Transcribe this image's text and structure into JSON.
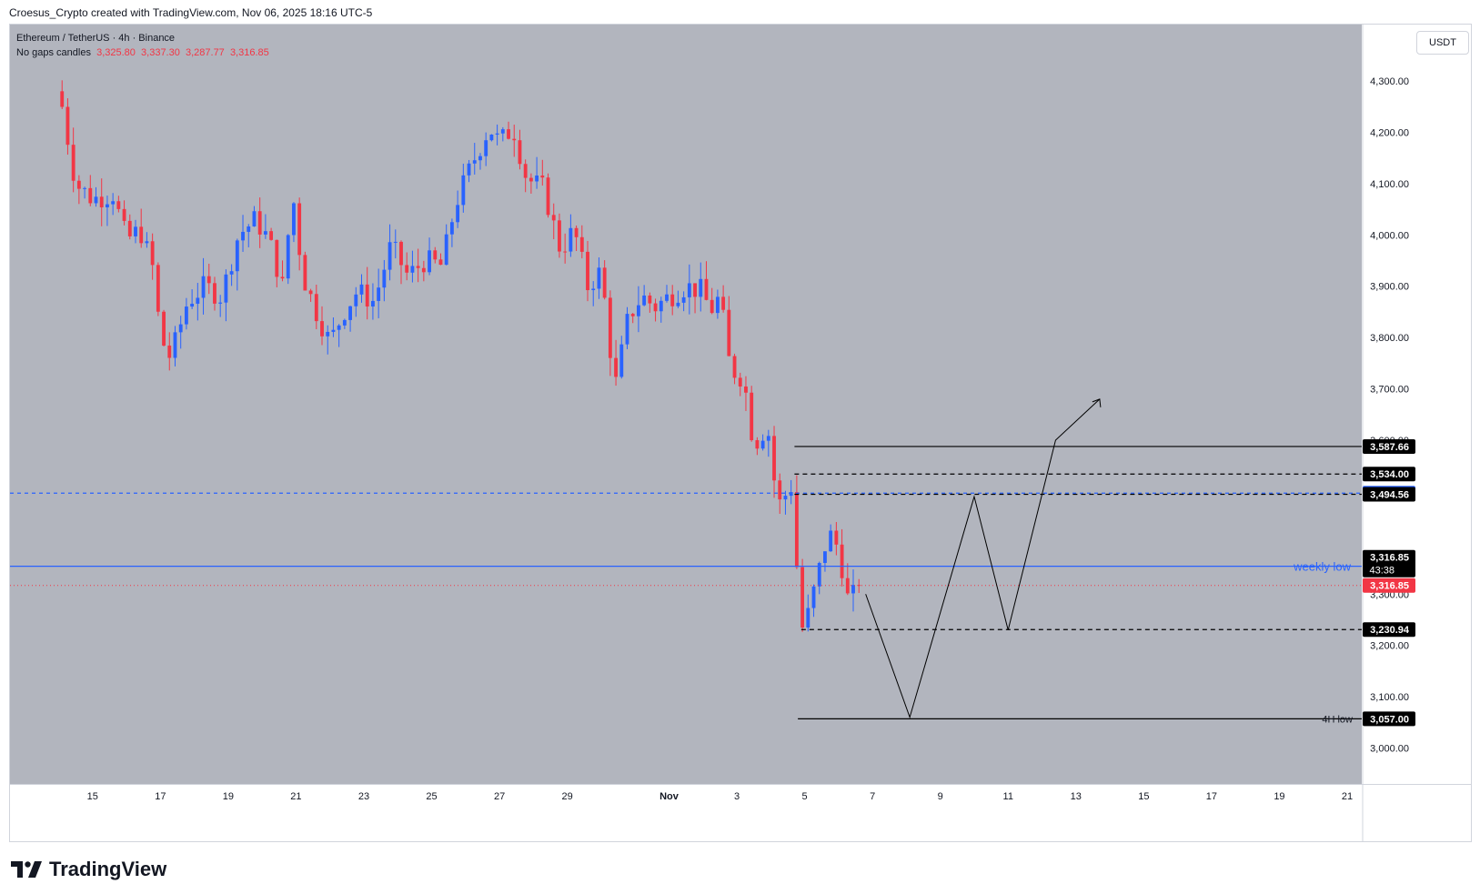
{
  "header": {
    "attribution": "Croesus_Crypto created with TradingView.com, Nov 06, 2025 18:16 UTC-5"
  },
  "legend": {
    "symbol_line": "Ethereum / TetherUS · 4h · Binance",
    "candle_type": "No gaps candles",
    "ohlc": [
      "3,325.80",
      "3,337.30",
      "3,287.77",
      "3,316.85"
    ]
  },
  "currency_button": "USDT",
  "footer": {
    "logo_text": "TradingView"
  },
  "colors": {
    "background": "#b2b5be",
    "up_candle": "#2962ff",
    "down_candle": "#f23645",
    "blue_level": "#2962ff",
    "drawing": "#000000"
  },
  "chart_data": {
    "type": "candlestick",
    "symbol": "Ethereum / TetherUS",
    "interval": "4h",
    "exchange": "Binance",
    "ylim": [
      2930,
      4410
    ],
    "y_ticks": [
      {
        "v": 3000,
        "label": "3,000.00"
      },
      {
        "v": 3100,
        "label": "3,100.00"
      },
      {
        "v": 3200,
        "label": "3,200.00"
      },
      {
        "v": 3300,
        "label": "3,300.00"
      },
      {
        "v": 3600,
        "label": "3,600.00"
      },
      {
        "v": 3700,
        "label": "3,700.00"
      },
      {
        "v": 3800,
        "label": "3,800.00"
      },
      {
        "v": 3900,
        "label": "3,900.00"
      },
      {
        "v": 4000,
        "label": "4,000.00"
      },
      {
        "v": 4100,
        "label": "4,100.00"
      },
      {
        "v": 4200,
        "label": "4,200.00"
      },
      {
        "v": 4300,
        "label": "4,300.00"
      }
    ],
    "x_ticks": [
      {
        "day": 15,
        "label": "15"
      },
      {
        "day": 17,
        "label": "17"
      },
      {
        "day": 19,
        "label": "19"
      },
      {
        "day": 21,
        "label": "21"
      },
      {
        "day": 23,
        "label": "23"
      },
      {
        "day": 25,
        "label": "25"
      },
      {
        "day": 27,
        "label": "27"
      },
      {
        "day": 29,
        "label": "29"
      },
      {
        "day": 32,
        "label": "Nov"
      },
      {
        "day": 34,
        "label": "3"
      },
      {
        "day": 36,
        "label": "5"
      },
      {
        "day": 38,
        "label": "7"
      },
      {
        "day": 40,
        "label": "9"
      },
      {
        "day": 42,
        "label": "11"
      },
      {
        "day": 44,
        "label": "13"
      },
      {
        "day": 46,
        "label": "15"
      },
      {
        "day": 48,
        "label": "17"
      },
      {
        "day": 50,
        "label": "19"
      },
      {
        "day": 52,
        "label": "21"
      }
    ],
    "x_domain_note": "day counted from Oct 1 (Nov 1 = 32)",
    "key_points": [
      {
        "day": 14.1,
        "close": 4250
      },
      {
        "day": 14.5,
        "close": 4100
      },
      {
        "day": 15.0,
        "close": 4070
      },
      {
        "day": 15.6,
        "close": 4080
      },
      {
        "day": 16.0,
        "close": 3990
      },
      {
        "day": 16.4,
        "close": 4010
      },
      {
        "day": 16.8,
        "close": 3930
      },
      {
        "day": 17.0,
        "close": 3800
      },
      {
        "day": 17.3,
        "close": 3760
      },
      {
        "day": 17.8,
        "close": 3870
      },
      {
        "day": 18.3,
        "close": 3900
      },
      {
        "day": 18.8,
        "close": 3880
      },
      {
        "day": 19.3,
        "close": 4000
      },
      {
        "day": 19.8,
        "close": 4030
      },
      {
        "day": 20.2,
        "close": 3990
      },
      {
        "day": 20.6,
        "close": 3900
      },
      {
        "day": 20.9,
        "close": 4080
      },
      {
        "day": 21.2,
        "close": 3920
      },
      {
        "day": 21.6,
        "close": 3850
      },
      {
        "day": 22.0,
        "close": 3790
      },
      {
        "day": 22.4,
        "close": 3850
      },
      {
        "day": 22.8,
        "close": 3890
      },
      {
        "day": 23.3,
        "close": 3870
      },
      {
        "day": 23.8,
        "close": 3980
      },
      {
        "day": 24.3,
        "close": 3920
      },
      {
        "day": 24.8,
        "close": 3950
      },
      {
        "day": 25.3,
        "close": 3940
      },
      {
        "day": 25.7,
        "close": 4060
      },
      {
        "day": 26.2,
        "close": 4140
      },
      {
        "day": 26.7,
        "close": 4210
      },
      {
        "day": 27.0,
        "close": 4180
      },
      {
        "day": 27.4,
        "close": 4210
      },
      {
        "day": 27.8,
        "close": 4110
      },
      {
        "day": 28.3,
        "close": 4090
      },
      {
        "day": 28.8,
        "close": 3970
      },
      {
        "day": 29.2,
        "close": 4010
      },
      {
        "day": 29.6,
        "close": 3900
      },
      {
        "day": 30.0,
        "close": 3930
      },
      {
        "day": 30.4,
        "close": 3700
      },
      {
        "day": 30.8,
        "close": 3840
      },
      {
        "day": 31.2,
        "close": 3880
      },
      {
        "day": 31.6,
        "close": 3860
      },
      {
        "day": 32.0,
        "close": 3880
      },
      {
        "day": 32.5,
        "close": 3900
      },
      {
        "day": 33.0,
        "close": 3890
      },
      {
        "day": 33.2,
        "close": 3850
      },
      {
        "day": 33.5,
        "close": 3880
      },
      {
        "day": 33.8,
        "close": 3740
      },
      {
        "day": 34.2,
        "close": 3720
      },
      {
        "day": 34.5,
        "close": 3590
      },
      {
        "day": 34.9,
        "close": 3630
      },
      {
        "day": 35.2,
        "close": 3470
      },
      {
        "day": 35.6,
        "close": 3510
      },
      {
        "day": 35.9,
        "close": 3230
      },
      {
        "day": 36.1,
        "close": 3260
      },
      {
        "day": 36.4,
        "close": 3340
      },
      {
        "day": 36.7,
        "close": 3420
      },
      {
        "day": 37.0,
        "close": 3390
      },
      {
        "day": 37.3,
        "close": 3280
      },
      {
        "day": 37.6,
        "close": 3316.85
      }
    ],
    "price_levels": [
      {
        "name": "level-3587",
        "value": 3587.66,
        "label": "3,587.66",
        "style": "solid",
        "color": "#000000"
      },
      {
        "name": "level-3534",
        "value": 3534.0,
        "label": "3,534.00",
        "style": "dashed",
        "color": "#000000"
      },
      {
        "name": "level-3496",
        "value": 3496.74,
        "label": "3,496.74",
        "style": "dashed",
        "color": "#2962ff"
      },
      {
        "name": "level-3494",
        "value": 3494.56,
        "label": "3,494.56",
        "style": "dashed",
        "color": "#000000"
      },
      {
        "name": "level-3354",
        "value": 3354.28,
        "label": "3,354.28",
        "style": "solid",
        "color": "#2962ff"
      },
      {
        "name": "level-3230",
        "value": 3230.94,
        "label": "3,230.94",
        "style": "dashed",
        "color": "#000000"
      },
      {
        "name": "level-3057",
        "value": 3057.0,
        "label": "3,057.00",
        "style": "solid",
        "color": "#000000"
      }
    ],
    "last_price": {
      "value": 3316.85,
      "label": "3,316.85",
      "countdown": "43:38"
    },
    "annotations": [
      {
        "name": "weekly-low-label",
        "text": "weekly low"
      },
      {
        "name": "four-h-low-label",
        "text": "4H low"
      }
    ],
    "projection_path": [
      {
        "day": 37.8,
        "price": 3300
      },
      {
        "day": 39.1,
        "price": 3060
      },
      {
        "day": 41.0,
        "price": 3490
      },
      {
        "day": 42.0,
        "price": 3230
      },
      {
        "day": 43.4,
        "price": 3600
      },
      {
        "day": 44.7,
        "price": 3680
      }
    ]
  }
}
